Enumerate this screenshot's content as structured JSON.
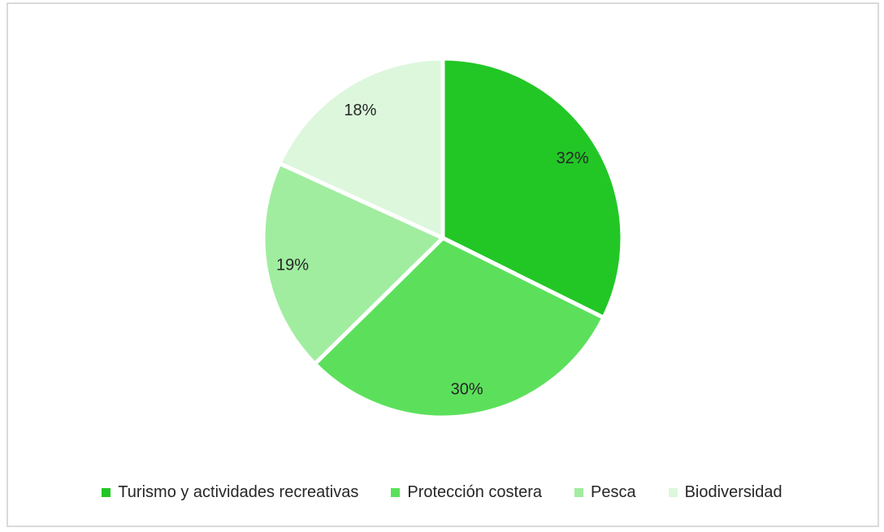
{
  "window": {
    "background": "#ffffff",
    "frame_border_color": "#dadada"
  },
  "chart_data": {
    "type": "pie",
    "title": "",
    "categories": [
      "Turismo y actividades recreativas",
      "Protección costera",
      "Pesca",
      "Biodiversidad"
    ],
    "values": [
      32,
      30,
      19,
      18
    ],
    "data_labels": [
      "32%",
      "30%",
      "19%",
      "18%"
    ],
    "slice_colors": [
      "#22c726",
      "#5ce05c",
      "#a0eda0",
      "#ddf7dd"
    ],
    "separator_color": "#ffffff",
    "label_color": "#262626",
    "start_angle_deg": 0,
    "direction": "clockwise",
    "legend_position": "bottom",
    "grid": "off"
  }
}
